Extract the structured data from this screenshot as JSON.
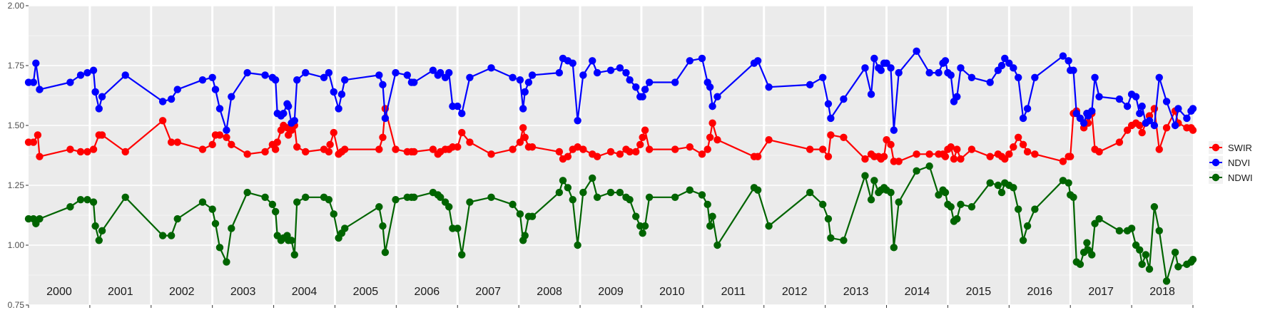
{
  "chart_data": {
    "type": "line",
    "title": "",
    "xlabel": "",
    "ylabel": "",
    "ylim": [
      0.75,
      2.0
    ],
    "xlim": [
      2000.0,
      2019.0
    ],
    "yticks": [
      0.75,
      1.0,
      1.25,
      1.5,
      1.75,
      2.0
    ],
    "ytick_labels": [
      "0.75",
      "1.00",
      "1.25",
      "1.50",
      "1.75",
      "2.00"
    ],
    "years": [
      "2000",
      "2001",
      "2002",
      "2003",
      "2004",
      "2005",
      "2006",
      "2007",
      "2008",
      "2009",
      "2010",
      "2011",
      "2012",
      "2013",
      "2014",
      "2015",
      "2016",
      "2017",
      "2018"
    ],
    "grid": true,
    "legend_position": "right",
    "series": [
      {
        "name": "SWIR",
        "color": "#ff0000",
        "x": [
          2000.0,
          2000.08,
          2000.15,
          2000.18,
          2000.68,
          2000.85,
          2000.96,
          2001.06,
          2001.15,
          2001.2,
          2001.58,
          2002.19,
          2002.33,
          2002.43,
          2002.84,
          2003.0,
          2003.05,
          2003.12,
          2003.23,
          2003.31,
          2003.57,
          2003.86,
          2003.98,
          2004.03,
          2004.06,
          2004.12,
          2004.16,
          2004.22,
          2004.24,
          2004.29,
          2004.34,
          2004.38,
          2004.52,
          2004.82,
          2004.9,
          2004.92,
          2004.98,
          2005.06,
          2005.11,
          2005.16,
          2005.72,
          2005.78,
          2005.82,
          2005.99,
          2006.18,
          2006.25,
          2006.29,
          2006.6,
          2006.68,
          2006.72,
          2006.8,
          2006.86,
          2006.92,
          2007.0,
          2007.07,
          2007.2,
          2007.55,
          2007.9,
          2008.02,
          2008.07,
          2008.1,
          2008.16,
          2008.22,
          2008.66,
          2008.72,
          2008.8,
          2008.88,
          2008.96,
          2009.05,
          2009.2,
          2009.28,
          2009.5,
          2009.65,
          2009.75,
          2009.81,
          2009.91,
          2009.98,
          2010.02,
          2010.06,
          2010.13,
          2010.55,
          2010.79,
          2010.99,
          2011.08,
          2011.12,
          2011.16,
          2011.24,
          2011.84,
          2011.9,
          2012.08,
          2012.75,
          2012.96,
          2013.05,
          2013.09,
          2013.3,
          2013.65,
          2013.75,
          2013.8,
          2013.87,
          2013.91,
          2013.96,
          2014.0,
          2014.07,
          2014.12,
          2014.2,
          2014.49,
          2014.7,
          2014.85,
          2014.92,
          2014.96,
          2015.0,
          2015.05,
          2015.1,
          2015.15,
          2015.21,
          2015.39,
          2015.69,
          2015.82,
          2015.88,
          2015.93,
          2016.0,
          2016.07,
          2016.15,
          2016.23,
          2016.3,
          2016.42,
          2016.88,
          2016.97,
          2017.0,
          2017.05,
          2017.1,
          2017.16,
          2017.22,
          2017.27,
          2017.29,
          2017.35,
          2017.4,
          2017.47,
          2017.8,
          2017.93,
          2018.0,
          2018.07,
          2018.13,
          2018.17,
          2018.23,
          2018.29,
          2018.37,
          2018.45,
          2018.57,
          2018.71,
          2018.76,
          2018.9,
          2018.97,
          2019.0
        ],
        "values": [
          1.43,
          1.43,
          1.46,
          1.37,
          1.4,
          1.39,
          1.39,
          1.4,
          1.46,
          1.46,
          1.39,
          1.52,
          1.43,
          1.43,
          1.4,
          1.42,
          1.46,
          1.46,
          1.45,
          1.42,
          1.38,
          1.39,
          1.42,
          1.4,
          1.43,
          1.48,
          1.5,
          1.49,
          1.46,
          1.48,
          1.5,
          1.41,
          1.39,
          1.4,
          1.39,
          1.42,
          1.47,
          1.38,
          1.39,
          1.4,
          1.4,
          1.45,
          1.57,
          1.4,
          1.39,
          1.39,
          1.39,
          1.4,
          1.38,
          1.39,
          1.4,
          1.4,
          1.41,
          1.41,
          1.47,
          1.43,
          1.38,
          1.4,
          1.43,
          1.49,
          1.45,
          1.41,
          1.41,
          1.39,
          1.36,
          1.37,
          1.4,
          1.41,
          1.4,
          1.38,
          1.37,
          1.39,
          1.38,
          1.4,
          1.39,
          1.39,
          1.42,
          1.45,
          1.48,
          1.4,
          1.4,
          1.41,
          1.38,
          1.4,
          1.45,
          1.51,
          1.44,
          1.37,
          1.37,
          1.44,
          1.4,
          1.4,
          1.37,
          1.46,
          1.45,
          1.36,
          1.38,
          1.37,
          1.37,
          1.36,
          1.37,
          1.44,
          1.42,
          1.35,
          1.35,
          1.38,
          1.38,
          1.38,
          1.38,
          1.37,
          1.4,
          1.41,
          1.36,
          1.4,
          1.36,
          1.4,
          1.37,
          1.38,
          1.37,
          1.36,
          1.38,
          1.41,
          1.45,
          1.42,
          1.39,
          1.38,
          1.35,
          1.37,
          1.37,
          1.55,
          1.56,
          1.53,
          1.49,
          1.55,
          1.51,
          1.55,
          1.4,
          1.39,
          1.43,
          1.48,
          1.5,
          1.51,
          1.5,
          1.47,
          1.51,
          1.54,
          1.57,
          1.4,
          1.49,
          1.56,
          1.51,
          1.49,
          1.49,
          1.48
        ]
      },
      {
        "name": "NDVI",
        "color": "#0000ff",
        "x": [
          2000.0,
          2000.08,
          2000.12,
          2000.18,
          2000.68,
          2000.85,
          2000.96,
          2001.06,
          2001.09,
          2001.15,
          2001.2,
          2001.58,
          2002.19,
          2002.33,
          2002.43,
          2002.84,
          2003.0,
          2003.05,
          2003.12,
          2003.23,
          2003.31,
          2003.57,
          2003.86,
          2003.98,
          2004.03,
          2004.06,
          2004.12,
          2004.16,
          2004.22,
          2004.24,
          2004.29,
          2004.34,
          2004.38,
          2004.52,
          2004.82,
          2004.9,
          2004.98,
          2005.06,
          2005.11,
          2005.16,
          2005.72,
          2005.78,
          2005.82,
          2005.99,
          2006.18,
          2006.25,
          2006.29,
          2006.6,
          2006.68,
          2006.72,
          2006.8,
          2006.86,
          2006.92,
          2007.0,
          2007.07,
          2007.2,
          2007.55,
          2007.9,
          2008.02,
          2008.07,
          2008.1,
          2008.16,
          2008.22,
          2008.66,
          2008.72,
          2008.8,
          2008.88,
          2008.96,
          2009.05,
          2009.2,
          2009.28,
          2009.5,
          2009.65,
          2009.75,
          2009.81,
          2009.91,
          2009.98,
          2010.02,
          2010.06,
          2010.13,
          2010.55,
          2010.79,
          2010.99,
          2011.08,
          2011.12,
          2011.16,
          2011.24,
          2011.84,
          2011.9,
          2012.08,
          2012.75,
          2012.96,
          2013.05,
          2013.09,
          2013.3,
          2013.65,
          2013.75,
          2013.8,
          2013.87,
          2013.91,
          2013.96,
          2014.0,
          2014.07,
          2014.12,
          2014.2,
          2014.49,
          2014.7,
          2014.85,
          2014.92,
          2014.96,
          2015.0,
          2015.05,
          2015.1,
          2015.15,
          2015.21,
          2015.39,
          2015.69,
          2015.82,
          2015.88,
          2015.93,
          2016.0,
          2016.07,
          2016.15,
          2016.23,
          2016.3,
          2016.42,
          2016.88,
          2016.97,
          2017.0,
          2017.05,
          2017.1,
          2017.16,
          2017.22,
          2017.27,
          2017.29,
          2017.35,
          2017.4,
          2017.47,
          2017.8,
          2017.93,
          2018.0,
          2018.07,
          2018.13,
          2018.17,
          2018.23,
          2018.29,
          2018.37,
          2018.45,
          2018.57,
          2018.71,
          2018.76,
          2018.9,
          2018.97,
          2019.0
        ],
        "values": [
          1.68,
          1.68,
          1.76,
          1.65,
          1.68,
          1.71,
          1.72,
          1.73,
          1.64,
          1.57,
          1.62,
          1.71,
          1.6,
          1.61,
          1.65,
          1.69,
          1.7,
          1.65,
          1.57,
          1.48,
          1.62,
          1.72,
          1.71,
          1.7,
          1.69,
          1.55,
          1.54,
          1.55,
          1.59,
          1.58,
          1.51,
          1.52,
          1.69,
          1.72,
          1.7,
          1.72,
          1.64,
          1.57,
          1.63,
          1.69,
          1.71,
          1.67,
          1.53,
          1.72,
          1.71,
          1.68,
          1.68,
          1.73,
          1.71,
          1.72,
          1.7,
          1.72,
          1.58,
          1.58,
          1.55,
          1.7,
          1.74,
          1.7,
          1.69,
          1.57,
          1.64,
          1.68,
          1.71,
          1.72,
          1.78,
          1.77,
          1.76,
          1.52,
          1.71,
          1.77,
          1.72,
          1.73,
          1.74,
          1.72,
          1.69,
          1.66,
          1.62,
          1.62,
          1.65,
          1.68,
          1.68,
          1.77,
          1.78,
          1.68,
          1.66,
          1.58,
          1.62,
          1.76,
          1.77,
          1.66,
          1.67,
          1.7,
          1.59,
          1.53,
          1.61,
          1.74,
          1.63,
          1.78,
          1.74,
          1.73,
          1.76,
          1.76,
          1.74,
          1.48,
          1.72,
          1.81,
          1.72,
          1.72,
          1.76,
          1.77,
          1.72,
          1.71,
          1.6,
          1.62,
          1.74,
          1.7,
          1.68,
          1.73,
          1.75,
          1.78,
          1.76,
          1.74,
          1.7,
          1.53,
          1.57,
          1.7,
          1.79,
          1.77,
          1.73,
          1.73,
          1.55,
          1.53,
          1.51,
          1.55,
          1.54,
          1.56,
          1.7,
          1.62,
          1.61,
          1.58,
          1.63,
          1.62,
          1.55,
          1.58,
          1.51,
          1.52,
          1.5,
          1.7,
          1.6,
          1.5,
          1.57,
          1.53,
          1.56,
          1.57
        ]
      },
      {
        "name": "NDWI",
        "color": "#006400",
        "x": [
          2000.0,
          2000.08,
          2000.12,
          2000.18,
          2000.68,
          2000.85,
          2000.96,
          2001.06,
          2001.09,
          2001.15,
          2001.2,
          2001.58,
          2002.19,
          2002.33,
          2002.43,
          2002.84,
          2003.0,
          2003.05,
          2003.12,
          2003.23,
          2003.31,
          2003.57,
          2003.86,
          2003.98,
          2004.03,
          2004.06,
          2004.12,
          2004.16,
          2004.22,
          2004.24,
          2004.29,
          2004.34,
          2004.38,
          2004.52,
          2004.82,
          2004.9,
          2004.98,
          2005.06,
          2005.11,
          2005.16,
          2005.72,
          2005.78,
          2005.82,
          2005.99,
          2006.18,
          2006.25,
          2006.29,
          2006.6,
          2006.68,
          2006.72,
          2006.8,
          2006.86,
          2006.92,
          2007.0,
          2007.07,
          2007.2,
          2007.55,
          2007.9,
          2008.02,
          2008.07,
          2008.1,
          2008.16,
          2008.22,
          2008.66,
          2008.72,
          2008.8,
          2008.88,
          2008.96,
          2009.05,
          2009.2,
          2009.28,
          2009.5,
          2009.65,
          2009.75,
          2009.81,
          2009.91,
          2009.98,
          2010.02,
          2010.06,
          2010.13,
          2010.55,
          2010.79,
          2010.99,
          2011.08,
          2011.12,
          2011.16,
          2011.24,
          2011.84,
          2011.9,
          2012.08,
          2012.75,
          2012.96,
          2013.05,
          2013.09,
          2013.3,
          2013.65,
          2013.75,
          2013.8,
          2013.87,
          2013.91,
          2013.96,
          2014.0,
          2014.07,
          2014.12,
          2014.2,
          2014.49,
          2014.7,
          2014.85,
          2014.92,
          2014.96,
          2015.0,
          2015.05,
          2015.1,
          2015.15,
          2015.21,
          2015.39,
          2015.69,
          2015.82,
          2015.88,
          2015.93,
          2016.0,
          2016.07,
          2016.15,
          2016.23,
          2016.3,
          2016.42,
          2016.88,
          2016.97,
          2017.0,
          2017.05,
          2017.1,
          2017.16,
          2017.22,
          2017.27,
          2017.29,
          2017.35,
          2017.4,
          2017.47,
          2017.8,
          2017.93,
          2018.0,
          2018.07,
          2018.13,
          2018.17,
          2018.23,
          2018.29,
          2018.37,
          2018.45,
          2018.57,
          2018.71,
          2018.76,
          2018.9,
          2018.97,
          2019.0
        ],
        "values": [
          1.11,
          1.11,
          1.09,
          1.11,
          1.16,
          1.19,
          1.19,
          1.18,
          1.08,
          1.02,
          1.06,
          1.2,
          1.04,
          1.04,
          1.11,
          1.18,
          1.15,
          1.09,
          0.99,
          0.93,
          1.07,
          1.22,
          1.2,
          1.17,
          1.14,
          1.04,
          1.02,
          1.03,
          1.04,
          1.02,
          1.02,
          0.96,
          1.18,
          1.2,
          1.2,
          1.19,
          1.13,
          1.03,
          1.05,
          1.07,
          1.16,
          1.08,
          0.97,
          1.19,
          1.2,
          1.2,
          1.2,
          1.22,
          1.21,
          1.2,
          1.18,
          1.16,
          1.07,
          1.07,
          0.96,
          1.18,
          1.2,
          1.17,
          1.13,
          1.02,
          1.04,
          1.12,
          1.12,
          1.22,
          1.27,
          1.24,
          1.19,
          1.0,
          1.22,
          1.28,
          1.2,
          1.22,
          1.22,
          1.2,
          1.19,
          1.12,
          1.08,
          1.05,
          1.08,
          1.2,
          1.2,
          1.23,
          1.21,
          1.17,
          1.08,
          1.12,
          1.0,
          1.24,
          1.23,
          1.08,
          1.22,
          1.17,
          1.11,
          1.03,
          1.02,
          1.29,
          1.19,
          1.27,
          1.22,
          1.23,
          1.24,
          1.23,
          1.22,
          0.99,
          1.18,
          1.31,
          1.33,
          1.21,
          1.23,
          1.22,
          1.17,
          1.16,
          1.1,
          1.11,
          1.17,
          1.16,
          1.26,
          1.25,
          1.22,
          1.26,
          1.25,
          1.24,
          1.15,
          1.02,
          1.08,
          1.15,
          1.27,
          1.26,
          1.21,
          1.2,
          0.93,
          0.92,
          0.97,
          1.01,
          0.98,
          0.96,
          1.09,
          1.11,
          1.06,
          1.06,
          1.07,
          1.0,
          0.98,
          0.92,
          0.96,
          0.9,
          1.16,
          1.06,
          0.85,
          0.97,
          0.91,
          0.92,
          0.93,
          0.94
        ]
      }
    ]
  }
}
